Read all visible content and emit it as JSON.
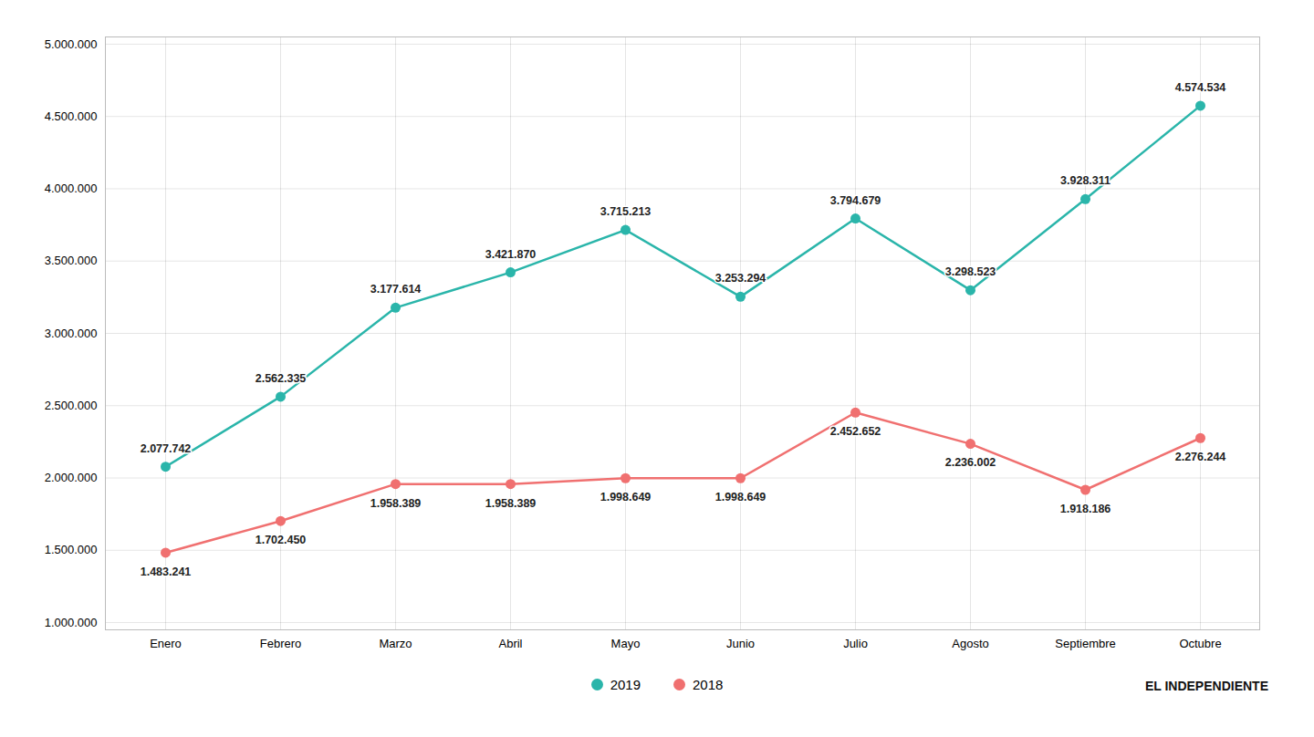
{
  "chart_data": {
    "type": "line",
    "categories": [
      "Enero",
      "Febrero",
      "Marzo",
      "Abril",
      "Mayo",
      "Junio",
      "Julio",
      "Agosto",
      "Septiembre",
      "Octubre"
    ],
    "series": [
      {
        "name": "2019",
        "color": "#2ab5aa",
        "marker": "circle",
        "values": [
          2077742,
          2562335,
          3177614,
          3421870,
          3715213,
          3253294,
          3794679,
          3298523,
          3928311,
          4574534
        ],
        "value_labels": [
          "2.077.742",
          "2.562.335",
          "3.177.614",
          "3.421.870",
          "3.715.213",
          "3.253.294",
          "3.794.679",
          "3.298.523",
          "3.928.311",
          "4.574.534"
        ]
      },
      {
        "name": "2018",
        "color": "#f07070",
        "marker": "circle",
        "values": [
          1483241,
          1702450,
          1958389,
          1958389,
          1998649,
          1998649,
          2452652,
          2236002,
          1918186,
          2276244
        ],
        "value_labels": [
          "1.483.241",
          "1.702.450",
          "1.958.389",
          "1.958.389",
          "1.998.649",
          "1.998.649",
          "2.452.652",
          "2.236.002",
          "1.918.186",
          "2.276.244"
        ]
      }
    ],
    "ylim": [
      950000,
      5050000
    ],
    "yticks": [
      {
        "value": 1000000,
        "label": "1.000.000"
      },
      {
        "value": 1500000,
        "label": "1.500.000"
      },
      {
        "value": 2000000,
        "label": "2.000.000"
      },
      {
        "value": 2500000,
        "label": "2.500.000"
      },
      {
        "value": 3000000,
        "label": "3.000.000"
      },
      {
        "value": 3500000,
        "label": "3.500.000"
      },
      {
        "value": 4000000,
        "label": "4.000.000"
      },
      {
        "value": 4500000,
        "label": "4.500.000"
      },
      {
        "value": 5000000,
        "label": "5.000.000"
      }
    ],
    "grid": true,
    "data_labels": true,
    "legend": "bottom",
    "annotations": [
      "EL INDEPENDIENTE"
    ]
  }
}
